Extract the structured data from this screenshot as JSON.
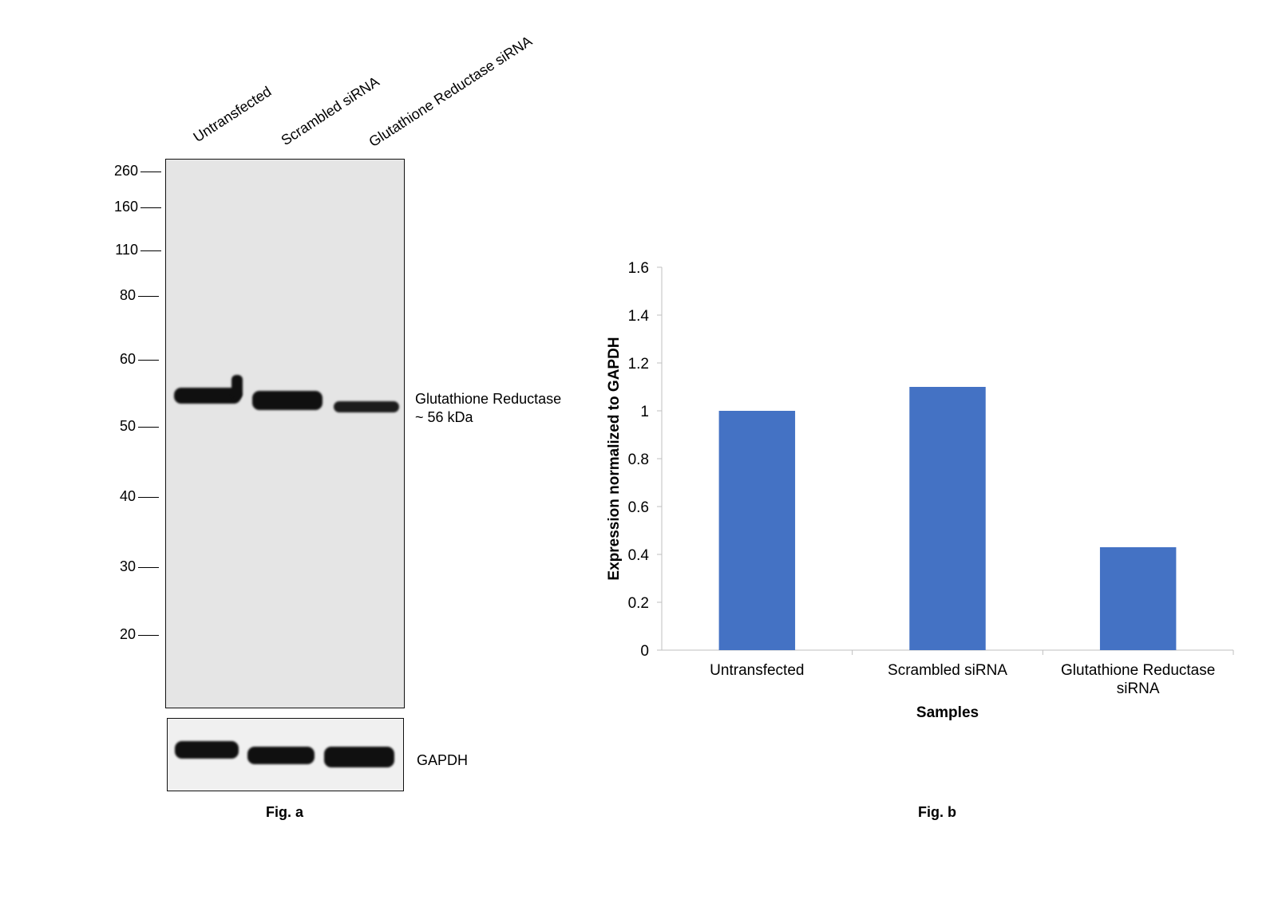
{
  "fig_a": {
    "lanes": [
      "Untransfected",
      "Scrambled siRNA",
      "Glutathione Reductase siRNA"
    ],
    "mw_markers": [
      "260",
      "160",
      "110",
      "80",
      "60",
      "50",
      "40",
      "30",
      "20"
    ],
    "band_label": "Glutathione Reductase",
    "band_size": "~ 56 kDa",
    "loading_control": "GAPDH",
    "caption": "Fig. a"
  },
  "fig_b": {
    "caption": "Fig. b"
  },
  "chart_data": {
    "type": "bar",
    "categories": [
      "Untransfected",
      "Scrambled siRNA",
      "Glutathione Reductase siRNA"
    ],
    "values": [
      1.0,
      1.1,
      0.43
    ],
    "title": "",
    "xlabel": "Samples",
    "ylabel": "Expression normalized to GAPDH",
    "ylim": [
      0,
      1.6
    ],
    "yticks": [
      "0",
      "0.2",
      "0.4",
      "0.6",
      "0.8",
      "1",
      "1.2",
      "1.4",
      "1.6"
    ],
    "bar_color": "#4472c4",
    "grid": false
  }
}
